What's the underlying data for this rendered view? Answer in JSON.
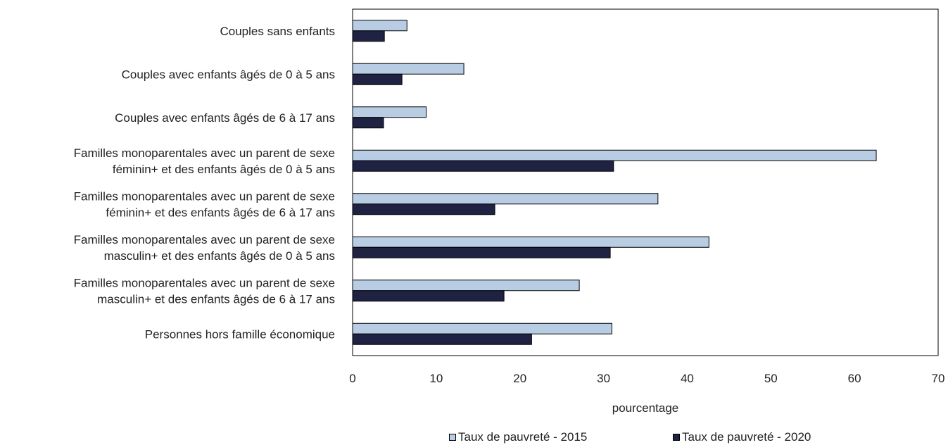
{
  "chart_data": {
    "type": "bar",
    "orientation": "horizontal",
    "categories": [
      [
        "Couples sans enfants"
      ],
      [
        "Couples avec enfants âgés de 0 à 5 ans"
      ],
      [
        "Couples avec enfants âgés de 6 à 17 ans"
      ],
      [
        "Familles monoparentales avec un parent de sexe",
        "féminin+ et des enfants âgés de 0 à 5 ans"
      ],
      [
        "Familles monoparentales avec un parent de sexe",
        "féminin+ et des enfants âgés de 6 à 17 ans"
      ],
      [
        "Familles monoparentales avec un parent de sexe",
        "masculin+ et des enfants âgés de 0 à 5 ans"
      ],
      [
        "Familles monoparentales avec un parent de sexe",
        "masculin+ et des enfants âgés de 6 à 17 ans"
      ],
      [
        "Personnes hors famille économique"
      ]
    ],
    "series": [
      {
        "name": "Taux de pauvreté - 2015",
        "color": "#b8cce4",
        "values": [
          6.5,
          13.3,
          8.8,
          62.6,
          36.5,
          42.6,
          27.1,
          31.0
        ]
      },
      {
        "name": "Taux de pauvreté - 2020",
        "color": "#1f2243",
        "values": [
          3.8,
          5.9,
          3.7,
          31.2,
          17.0,
          30.8,
          18.1,
          21.4
        ]
      }
    ],
    "xlabel": "pourcentage",
    "xlim": [
      0,
      70
    ],
    "xticks": [
      "0",
      "10",
      "20",
      "30",
      "40",
      "50",
      "60",
      "70"
    ],
    "grid": false,
    "legend_position": "bottom"
  }
}
